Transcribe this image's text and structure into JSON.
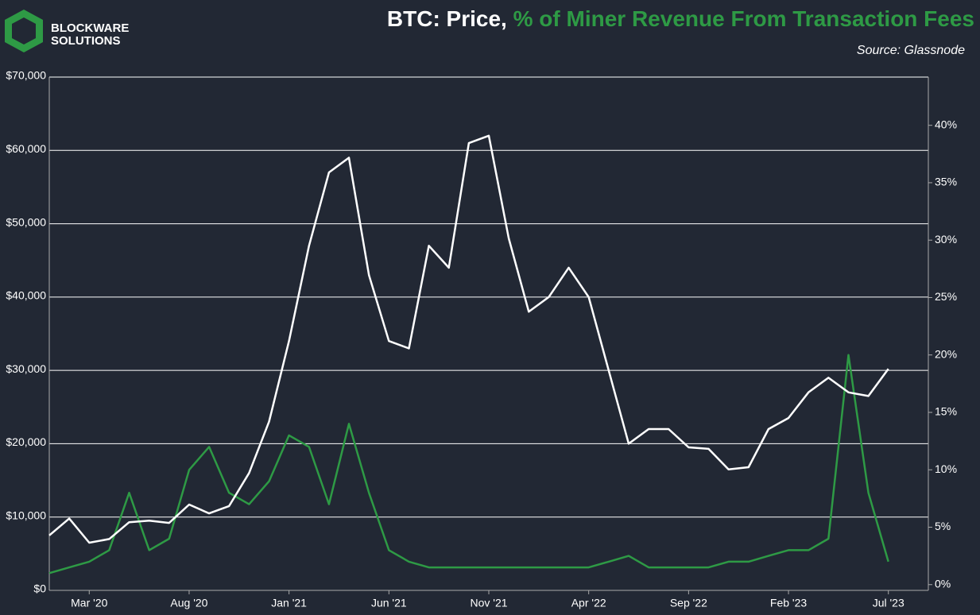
{
  "logo": {
    "line1": "BLOCKWARE",
    "line2": "SOLUTIONS"
  },
  "chart_data": {
    "type": "line",
    "title": "BTC: Price,",
    "source": "Source: Glassnode",
    "x": [
      "2020-01",
      "2020-02",
      "2020-03",
      "2020-04",
      "2020-05",
      "2020-06",
      "2020-07",
      "2020-08",
      "2020-09",
      "2020-10",
      "2020-11",
      "2020-12",
      "2021-01",
      "2021-02",
      "2021-03",
      "2021-04",
      "2021-05",
      "2021-06",
      "2021-07",
      "2021-08",
      "2021-09",
      "2021-10",
      "2021-11",
      "2021-12",
      "2022-01",
      "2022-02",
      "2022-03",
      "2022-04",
      "2022-05",
      "2022-06",
      "2022-07",
      "2022-08",
      "2022-09",
      "2022-10",
      "2022-11",
      "2022-12",
      "2023-01",
      "2023-02",
      "2023-03",
      "2023-04",
      "2023-05",
      "2023-06",
      "2023-07"
    ],
    "xlim": [
      "2020-01",
      "2023-09"
    ],
    "xticks": [
      {
        "value": "2020-03",
        "label": "Mar '20"
      },
      {
        "value": "2020-08",
        "label": "Aug '20"
      },
      {
        "value": "2021-01",
        "label": "Jan '21"
      },
      {
        "value": "2021-06",
        "label": "Jun '21"
      },
      {
        "value": "2021-11",
        "label": "Nov '21"
      },
      {
        "value": "2022-04",
        "label": "Apr '22"
      },
      {
        "value": "2022-09",
        "label": "Sep '22"
      },
      {
        "value": "2023-02",
        "label": "Feb '23"
      },
      {
        "value": "2023-07",
        "label": "Jul '23"
      }
    ],
    "ylim": [
      0,
      70000
    ],
    "yticks": [
      {
        "value": 0,
        "label": "$0"
      },
      {
        "value": 10000,
        "label": "$10,000"
      },
      {
        "value": 20000,
        "label": "$20,000"
      },
      {
        "value": 30000,
        "label": "$30,000"
      },
      {
        "value": 40000,
        "label": "$40,000"
      },
      {
        "value": 50000,
        "label": "$50,000"
      },
      {
        "value": 60000,
        "label": "$60,000"
      },
      {
        "value": 70000,
        "label": "$70,000"
      }
    ],
    "y2lim": [
      -0.5,
      44.2
    ],
    "y2ticks": [
      {
        "value": 0,
        "label": "0%"
      },
      {
        "value": 5,
        "label": "5%"
      },
      {
        "value": 10,
        "label": "10%"
      },
      {
        "value": 15,
        "label": "15%"
      },
      {
        "value": 20,
        "label": "20%"
      },
      {
        "value": 25,
        "label": "25%"
      },
      {
        "value": 30,
        "label": "30%"
      },
      {
        "value": 35,
        "label": "35%"
      },
      {
        "value": 40,
        "label": "40%"
      }
    ],
    "grid": true,
    "series": [
      {
        "color": "#ffffff",
        "values": [
          7500,
          9800,
          6500,
          7000,
          9300,
          9500,
          9200,
          11700,
          10500,
          11500,
          16000,
          23000,
          34000,
          47000,
          57000,
          59000,
          43000,
          34000,
          33000,
          47000,
          44000,
          61000,
          62000,
          48000,
          38000,
          40000,
          44000,
          40000,
          30000,
          20000,
          22000,
          22000,
          19500,
          19300,
          16500,
          16800,
          22000,
          23500,
          27000,
          29000,
          27000,
          26500,
          30200
        ]
      },
      {
        "name": "% of Miner Revenue From Transaction Fees",
        "color": "#2e9a45",
        "axis": "y2",
        "values": [
          1,
          1.5,
          2,
          3,
          8,
          3,
          4,
          10,
          12,
          8,
          7,
          9,
          13,
          12,
          7,
          14,
          8,
          3,
          2,
          1.5,
          1.5,
          1.5,
          1.5,
          1.5,
          1.5,
          1.5,
          1.5,
          1.5,
          2,
          2.5,
          1.5,
          1.5,
          1.5,
          1.5,
          2,
          2,
          2.5,
          3,
          3,
          4,
          20,
          8,
          2
        ]
      }
    ]
  }
}
